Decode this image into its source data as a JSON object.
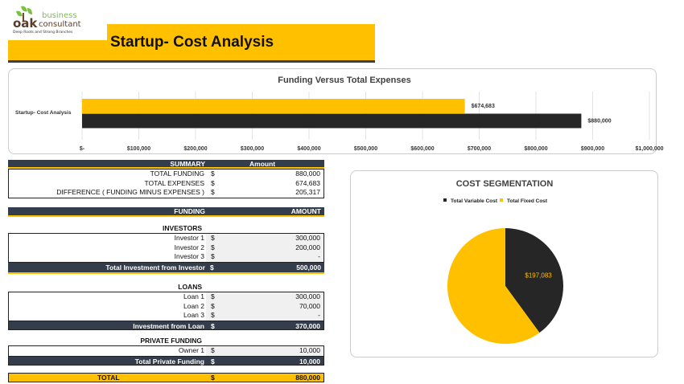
{
  "logo": {
    "brand_top": "business",
    "brand_main": "oak",
    "brand_sub": "consultant",
    "tagline": "Deep Roots and Strong Branches"
  },
  "page_title": "Startup- Cost Analysis",
  "colors": {
    "accent": "#FFC000",
    "dark": "#262626",
    "header": "#333d4c"
  },
  "chart_data": [
    {
      "type": "bar",
      "orientation": "horizontal",
      "title": "Funding Versus Total Expenses",
      "categories": [
        "Startup- Cost Analysis"
      ],
      "series": [
        {
          "values": [
            674683
          ],
          "color": "#FFC000",
          "data_label": "$674,683"
        },
        {
          "values": [
            880000
          ],
          "color": "#262626",
          "data_label": "$880,000"
        }
      ],
      "xlim": [
        0,
        1000000
      ],
      "x_ticks": [
        "$-",
        "$100,000",
        "$200,000",
        "$300,000",
        "$400,000",
        "$500,000",
        "$600,000",
        "$700,000",
        "$800,000",
        "$900,000",
        "$1,000,000"
      ],
      "grid": true
    },
    {
      "type": "pie",
      "title": "COST SEGMENTATION",
      "legend": "top",
      "slices": [
        {
          "name": "Total Variable Cost",
          "value": 197083,
          "color": "#262626",
          "data_label": "$197,083"
        },
        {
          "name": "Total Fixed Cost",
          "value": 296000,
          "color": "#FFC000"
        }
      ]
    }
  ],
  "summary": {
    "header": "SUMMARY",
    "amount_header": "Amount",
    "rows": [
      {
        "label": "TOTAL FUNDING",
        "cur": "$",
        "value": "880,000"
      },
      {
        "label": "TOTAL EXPENSES",
        "cur": "$",
        "value": "674,683"
      },
      {
        "label": "DIFFERENCE  ( FUNDING MINUS EXPENSES )",
        "cur": "$",
        "value": "205,317"
      }
    ]
  },
  "funding": {
    "header": "FUNDING",
    "amount_header": "AMOUNT",
    "investors": {
      "title": "INVESTORS",
      "rows": [
        {
          "label": "Investor 1",
          "cur": "$",
          "value": "300,000"
        },
        {
          "label": "Investor 2",
          "cur": "$",
          "value": "200,000"
        },
        {
          "label": "Investor 3",
          "cur": "$",
          "value": "-"
        }
      ],
      "total_label": "Total Investment from Investor",
      "total_cur": "$",
      "total": "500,000"
    },
    "loans": {
      "title": "LOANS",
      "rows": [
        {
          "label": "Loan 1",
          "cur": "$",
          "value": "300,000"
        },
        {
          "label": "Loan 2",
          "cur": "$",
          "value": "70,000"
        },
        {
          "label": "Loan 3",
          "cur": "$",
          "value": "-"
        }
      ],
      "total_label": "Investment from Loan",
      "total_cur": "$",
      "total": "370,000"
    },
    "private": {
      "title": "PRIVATE FUNDING",
      "rows": [
        {
          "label": "Owner 1",
          "cur": "$",
          "value": "10,000"
        }
      ],
      "total_label": "Total Private Funding",
      "total_cur": "$",
      "total": "10,000"
    },
    "grand_total": {
      "label": "TOTAL",
      "cur": "$",
      "value": "880,000"
    }
  }
}
